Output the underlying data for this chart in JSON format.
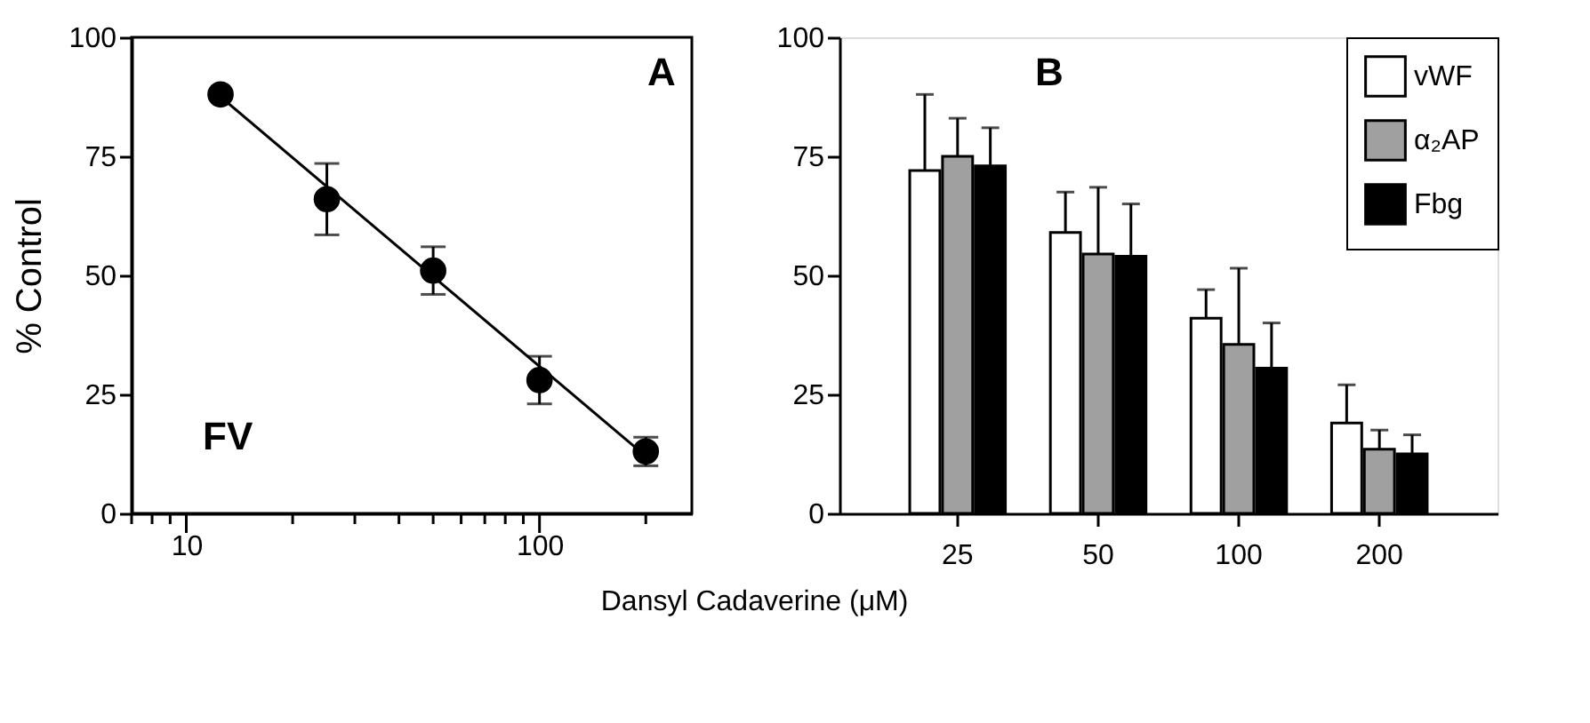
{
  "chart_data": [
    {
      "type": "scatter",
      "ylabel": "% Control",
      "xlabel": "Dansyl Cadaverine (μM)",
      "annotations": [
        "A",
        "FV"
      ],
      "log": "x",
      "xlim": [
        7,
        270
      ],
      "xticks": [
        {
          "value": 7,
          "label": null
        },
        {
          "value": 8,
          "label": null
        },
        {
          "value": 9,
          "label": null
        },
        10,
        {
          "value": 20,
          "label": null
        },
        {
          "value": 30,
          "label": null
        },
        {
          "value": 40,
          "label": null
        },
        {
          "value": 50,
          "label": null
        },
        {
          "value": 60,
          "label": null
        },
        {
          "value": 70,
          "label": null
        },
        {
          "value": 80,
          "label": null
        },
        {
          "value": 90,
          "label": null
        },
        100,
        {
          "value": 200,
          "label": null
        }
      ],
      "ylim": [
        0,
        100
      ],
      "yticks": [
        0,
        25,
        50,
        75,
        100
      ],
      "series": [
        {
          "type": "scatter",
          "marker": "circle",
          "color": "#000000",
          "x": [
            12.5,
            25,
            50,
            100,
            200
          ],
          "values": [
            88,
            66,
            51,
            28,
            13
          ],
          "errors": [
            null,
            7.5,
            5,
            5,
            3
          ]
        },
        {
          "type": "line",
          "marker": "none",
          "line_style": "solid",
          "color": "#000000",
          "x": [
            12.5,
            200
          ],
          "values": [
            87.5,
            12
          ]
        }
      ]
    },
    {
      "type": "bar",
      "annotations": [
        "B"
      ],
      "categories": [
        "25",
        "50",
        "100",
        "200"
      ],
      "legend": "top right",
      "ylim": [
        0,
        100
      ],
      "yticks": [
        0,
        25,
        50,
        75,
        100
      ],
      "series": [
        {
          "name": "vWF",
          "color": "#ffffff",
          "values": [
            72,
            59,
            41,
            19
          ],
          "errors": [
            [
              72,
              88
            ],
            [
              59,
              67.5
            ],
            [
              41,
              47
            ],
            [
              19,
              27
            ]
          ]
        },
        {
          "name": "α₂AP",
          "color": "#a0a0a0",
          "values": [
            75,
            54.5,
            35.5,
            13.5
          ],
          "errors": [
            [
              75,
              83
            ],
            [
              54.5,
              68.5
            ],
            [
              35.5,
              51.5
            ],
            [
              13.5,
              17.5
            ]
          ]
        },
        {
          "name": "Fbg",
          "color": "#000000",
          "values": [
            73,
            54,
            30.5,
            12.5
          ],
          "errors": [
            [
              73,
              81
            ],
            [
              54,
              65
            ],
            [
              30.5,
              40
            ],
            [
              12.5,
              16.5
            ]
          ]
        }
      ]
    }
  ]
}
